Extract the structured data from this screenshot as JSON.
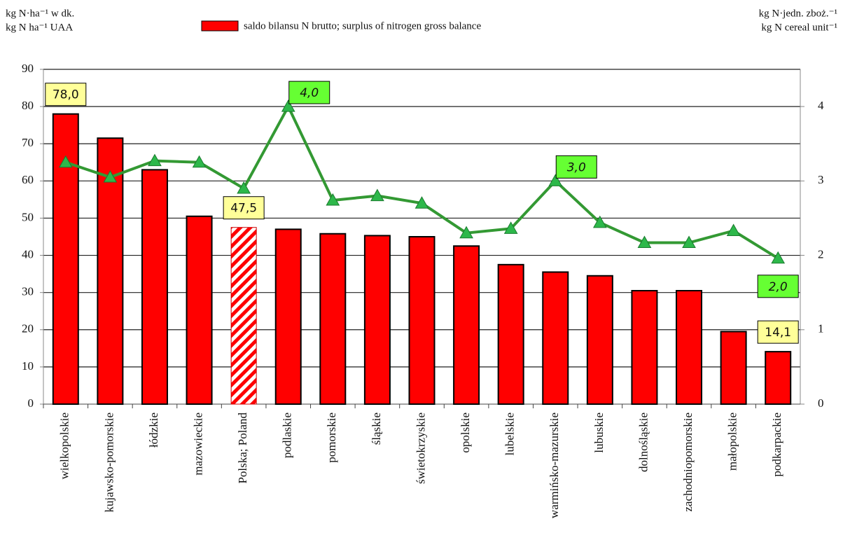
{
  "chart_data": {
    "type": "bar_line",
    "left_axis_title": [
      "kg N·ha⁻¹ w dk.",
      "kg N ha⁻¹ UAA"
    ],
    "right_axis_title": [
      "kg N·jedn. zboż.⁻¹",
      "kg N cereal unit⁻¹"
    ],
    "categories": [
      "wielkopolskie",
      "kujawsko-pomorskie",
      "łódzkie",
      "mazowieckie",
      "Polska; Poland",
      "podlaskie",
      "pomorskie",
      "śląskie",
      "świetokrzyskie",
      "opolskie",
      "lubelskie",
      "warmińsko-mazurskie",
      "lubuskie",
      "dolnośląskie",
      "zachodniopomorskie",
      "małopolskie",
      "podkarpackie"
    ],
    "series": [
      {
        "name": "saldo bilansu N brutto; surplus of nitrogen gross balance",
        "color": "#ff0000",
        "values": [
          78.0,
          71.5,
          63,
          50.5,
          47.5,
          47,
          45.8,
          45.3,
          45,
          42.5,
          37.5,
          35.5,
          34.5,
          30.5,
          30.5,
          19.5,
          14.1
        ],
        "value_labels": [
          "78,0",
          null,
          null,
          null,
          "47,5",
          null,
          null,
          null,
          null,
          null,
          null,
          null,
          null,
          null,
          null,
          null,
          "14,1"
        ],
        "bar_patterns": [
          "solid",
          "solid",
          "solid",
          "solid",
          "hatched",
          "solid",
          "solid",
          "solid",
          "solid",
          "solid",
          "solid",
          "solid",
          "solid",
          "solid",
          "solid",
          "solid",
          "solid"
        ]
      },
      {
        "color": "#339933",
        "axis": "y2",
        "values": [
          3.25,
          3.05,
          3.27,
          3.25,
          2.9,
          4.0,
          2.74,
          2.8,
          2.7,
          2.3,
          2.36,
          3.0,
          2.44,
          2.17,
          2.17,
          2.33,
          1.96
        ],
        "value_labels": [
          null,
          null,
          null,
          null,
          null,
          "4,0",
          null,
          null,
          null,
          null,
          null,
          "3,0",
          null,
          null,
          null,
          null,
          "2,0"
        ]
      }
    ],
    "ylim": [
      0,
      90
    ],
    "yticks": [
      0,
      10,
      20,
      30,
      40,
      50,
      60,
      70,
      80,
      90
    ],
    "y2lim": [
      0,
      4.5
    ],
    "y2ticks": [
      0,
      1,
      2,
      3,
      4
    ],
    "grid": true
  }
}
